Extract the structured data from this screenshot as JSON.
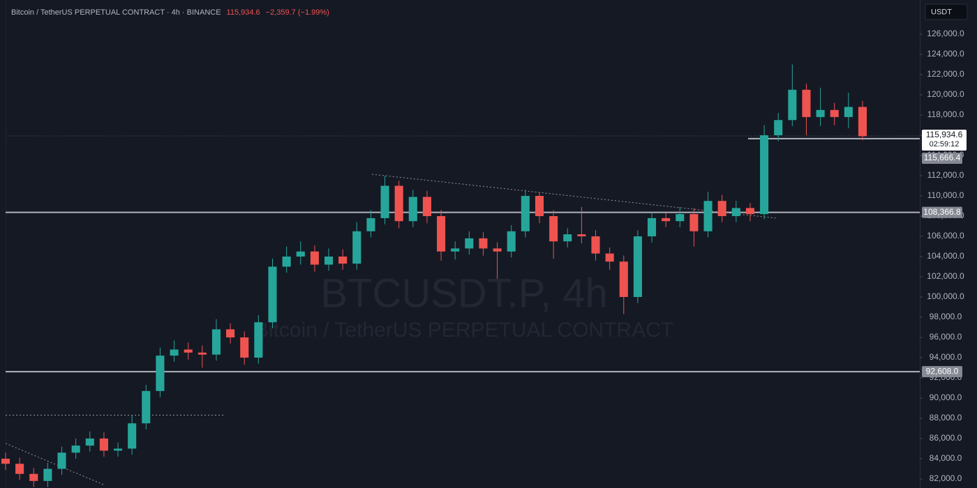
{
  "chart_data": {
    "type": "candlestick",
    "title": "Bitcoin / TetherUS PERPETUAL CONTRACT · 4h · BINANCE",
    "last_price": {
      "value": 115934.6,
      "label": "115,934.6"
    },
    "change": "−2,359.7 (−1.99%)",
    "countdown": "02:59:12",
    "currency": "USDT",
    "watermark": "BTCUSDT.P, 4h",
    "watermark_subtitle": "Bitcoin / TetherUS PERPETUAL CONTRACT",
    "up_color": "#26a69a",
    "down_color": "#ef5350",
    "grid": false,
    "ylim": [
      81103,
      129379
    ],
    "yticks": [
      {
        "value": 82000,
        "label": "82,000.0"
      },
      {
        "value": 84000,
        "label": "84,000.0"
      },
      {
        "value": 86000,
        "label": "86,000.0"
      },
      {
        "value": 88000,
        "label": "88,000.0"
      },
      {
        "value": 90000,
        "label": "90,000.0"
      },
      {
        "value": 92000,
        "label": "92,000.0"
      },
      {
        "value": 94000,
        "label": "94,000.0"
      },
      {
        "value": 96000,
        "label": "96,000.0"
      },
      {
        "value": 98000,
        "label": "98,000.0"
      },
      {
        "value": 100000,
        "label": "100,000.0"
      },
      {
        "value": 102000,
        "label": "102,000.0"
      },
      {
        "value": 104000,
        "label": "104,000.0"
      },
      {
        "value": 106000,
        "label": "106,000.0"
      },
      {
        "value": 108000,
        "label": "108,000.0"
      },
      {
        "value": 110000,
        "label": "110,000.0"
      },
      {
        "value": 112000,
        "label": "112,000.0"
      },
      {
        "value": 114000,
        "label": "114,000.0"
      },
      {
        "value": 116000,
        "label": "116,000.0"
      },
      {
        "value": 118000,
        "label": "118,000.0"
      },
      {
        "value": 120000,
        "label": "120,000.0"
      },
      {
        "value": 122000,
        "label": "122,000.0"
      },
      {
        "value": 124000,
        "label": "124,000.0"
      },
      {
        "value": 126000,
        "label": "126,000.0"
      }
    ],
    "price_lines": [
      {
        "value": 108366.8,
        "label": "108,366.8"
      },
      {
        "value": 92608.0,
        "label": "92,608.0"
      },
      {
        "value": 115666.4,
        "label": "115,666.4"
      }
    ],
    "open": [
      84000,
      83500,
      82500,
      81800,
      83000,
      84600,
      85300,
      86000,
      84800,
      85000,
      87500,
      90700,
      94200,
      94800,
      94500,
      94300,
      96800,
      96000,
      94000,
      97500,
      103000,
      104000,
      104500,
      103200,
      104000,
      103300,
      106500,
      107800,
      111000,
      107500,
      109900,
      108000,
      104500,
      104800,
      105800,
      104800,
      104500,
      106500,
      110000,
      108000,
      105500,
      106200,
      106000,
      104300,
      103500,
      100000,
      106000,
      107800,
      107500,
      108200,
      106500,
      109500,
      108000,
      108800,
      108200,
      116000,
      117500,
      120500,
      117800,
      118500,
      117800,
      118800
    ],
    "high": [
      84600,
      84100,
      83100,
      83600,
      85200,
      86000,
      86700,
      86600,
      85600,
      88300,
      91300,
      95000,
      95700,
      95500,
      95200,
      97800,
      97400,
      96600,
      98200,
      103800,
      105000,
      105500,
      105100,
      104800,
      104700,
      107400,
      108600,
      112000,
      111500,
      110600,
      110500,
      108600,
      105500,
      106500,
      106400,
      105400,
      107100,
      110600,
      110400,
      108600,
      106800,
      108900,
      106600,
      104900,
      104100,
      106600,
      108400,
      108300,
      108900,
      108800,
      110400,
      110100,
      109500,
      109300,
      117000,
      118200,
      123000,
      121100,
      120700,
      119200,
      120200,
      119400
    ],
    "low": [
      82900,
      81900,
      81200,
      81200,
      82400,
      84000,
      84700,
      84200,
      84200,
      84400,
      86900,
      90100,
      93600,
      93800,
      93000,
      93700,
      95400,
      93300,
      93400,
      96900,
      102400,
      103200,
      102500,
      102600,
      102700,
      102700,
      105900,
      107200,
      106800,
      106900,
      107300,
      103600,
      103700,
      104200,
      104100,
      101800,
      103900,
      105900,
      107300,
      103800,
      104900,
      105300,
      103600,
      102700,
      98300,
      99400,
      105400,
      106900,
      106900,
      105000,
      105900,
      107400,
      107400,
      107500,
      107700,
      115400,
      116900,
      116000,
      116900,
      117000,
      116700,
      115500
    ],
    "close": [
      83500,
      82500,
      81800,
      83000,
      84600,
      85300,
      86000,
      84800,
      85000,
      87500,
      90700,
      94200,
      94800,
      94500,
      94300,
      96800,
      96000,
      94000,
      97500,
      103000,
      104000,
      104500,
      103200,
      104000,
      103300,
      106500,
      107800,
      111000,
      107500,
      109900,
      108000,
      104500,
      104800,
      105800,
      104800,
      104500,
      106500,
      110000,
      108000,
      105500,
      106200,
      106000,
      104300,
      103500,
      100000,
      106000,
      107800,
      107500,
      108200,
      106500,
      109500,
      108000,
      108800,
      108200,
      116000,
      117500,
      120500,
      117800,
      118500,
      117800,
      118800,
      115900
    ]
  }
}
